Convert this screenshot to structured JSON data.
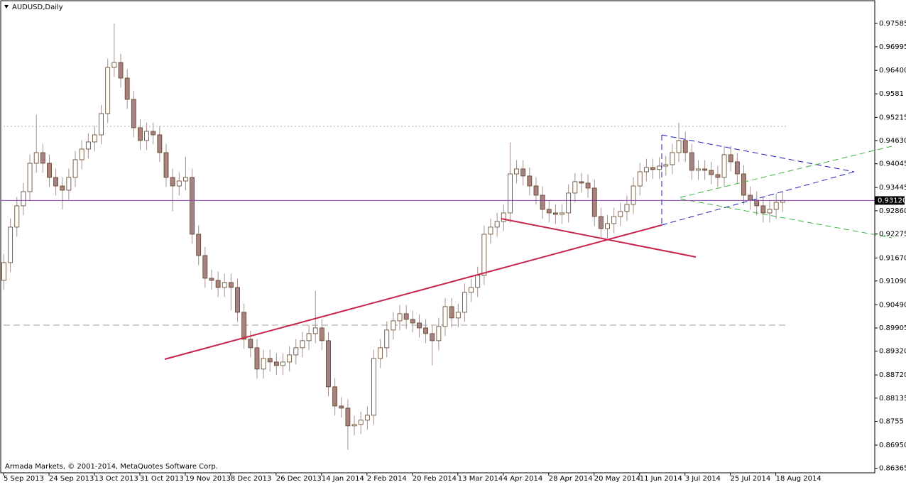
{
  "chart_data": {
    "type": "candlestick",
    "title": "AUDUSD,Daily",
    "footer": "Armada Markets, © 2001-2014, MetaQuotes Software Corp.",
    "categories": [
      "5 Sep 2013",
      null,
      null,
      null,
      null,
      null,
      null,
      "24 Sep 2013",
      null,
      null,
      null,
      null,
      null,
      null,
      "13 Oct 2013",
      null,
      null,
      null,
      null,
      null,
      null,
      "31 Oct 2013",
      null,
      null,
      null,
      null,
      null,
      null,
      "19 Nov 2013",
      null,
      null,
      null,
      null,
      null,
      null,
      "8 Dec 2013",
      null,
      null,
      null,
      null,
      null,
      null,
      "26 Dec 2013",
      null,
      null,
      null,
      null,
      null,
      null,
      "14 Jan 2014",
      null,
      null,
      null,
      null,
      null,
      null,
      "2 Feb 2014",
      null,
      null,
      null,
      null,
      null,
      null,
      "20 Feb 2014",
      null,
      null,
      null,
      null,
      null,
      null,
      "13 Mar 2014",
      null,
      null,
      null,
      null,
      null,
      null,
      "4 Apr 2014",
      null,
      null,
      null,
      null,
      null,
      null,
      "28 Apr 2014",
      null,
      null,
      null,
      null,
      null,
      null,
      "20 May 2014",
      null,
      null,
      null,
      null,
      null,
      null,
      "11 Jun 2014",
      null,
      null,
      null,
      null,
      null,
      null,
      "3 Jul 2014",
      null,
      null,
      null,
      null,
      null,
      null,
      "25 Jul 2014",
      null,
      null,
      null,
      null,
      null,
      null,
      "18 Aug 2014",
      null
    ],
    "open": [
      0.91105,
      0.91553,
      0.92448,
      0.92985,
      0.93343,
      0.94059,
      0.94327,
      0.94059,
      0.93701,
      0.93486,
      0.93379,
      0.93701,
      0.94148,
      0.94417,
      0.94596,
      0.94775,
      0.95312,
      0.96475,
      0.96601,
      0.96207,
      0.9567,
      0.94954,
      0.94632,
      0.94864,
      0.94775,
      0.94327,
      0.93701,
      0.93486,
      0.93611,
      0.93701,
      0.92269,
      0.91732,
      0.91159,
      0.91105,
      0.90926,
      0.91052,
      0.90926,
      0.903,
      0.8962,
      0.89405,
      0.88868,
      0.89136,
      0.89047,
      0.88957,
      0.89047,
      0.89226,
      0.89405,
      0.89584,
      0.89763,
      0.89906,
      0.89584,
      0.8842,
      0.87937,
      0.87883,
      0.87436,
      0.87472,
      0.87579,
      0.87704,
      0.89136,
      0.89405,
      0.89852,
      0.90085,
      0.90264,
      0.90121,
      0.90031,
      0.89906,
      0.89763,
      0.89584,
      0.89942,
      0.90443,
      0.90157,
      0.903,
      0.90801,
      0.90926,
      0.91231,
      0.92269,
      0.92448,
      0.92591,
      0.92806,
      0.9379,
      0.93916,
      0.93737,
      0.93486,
      0.93253,
      0.92895,
      0.92806,
      0.9277,
      0.92806,
      0.93307,
      0.93594,
      0.93558,
      0.93432,
      0.92716,
      0.92412,
      0.92537,
      0.92716,
      0.92842,
      0.93021,
      0.93486,
      0.93844,
      0.93952,
      0.93901,
      0.93987,
      0.94023,
      0.94327,
      0.94632,
      0.94327,
      0.9388,
      0.93916,
      0.9388,
      0.93773,
      0.93701,
      0.94274,
      0.94095,
      0.9379,
      0.93253,
      0.93128,
      0.92985,
      0.92806,
      0.92895,
      0.93074
    ],
    "high": [
      0.91773,
      0.92668,
      0.93205,
      0.93563,
      0.94279,
      0.9528,
      0.94547,
      0.94279,
      0.93921,
      0.93706,
      0.93921,
      0.94368,
      0.94637,
      0.94816,
      0.94995,
      0.95532,
      0.96695,
      0.9758,
      0.96821,
      0.96427,
      0.9589,
      0.95174,
      0.95084,
      0.95084,
      0.94995,
      0.94547,
      0.93921,
      0.93831,
      0.94221,
      0.93921,
      0.92489,
      0.91952,
      0.91379,
      0.91325,
      0.91272,
      0.91272,
      0.91146,
      0.9052,
      0.8984,
      0.89625,
      0.89356,
      0.89356,
      0.89267,
      0.89267,
      0.89446,
      0.89625,
      0.89804,
      0.89983,
      0.90837,
      0.90126,
      0.89804,
      0.8864,
      0.88157,
      0.88103,
      0.87692,
      0.87799,
      0.87924,
      0.89356,
      0.89625,
      0.90072,
      0.90305,
      0.90484,
      0.90484,
      0.90341,
      0.90251,
      0.90126,
      0.89983,
      0.90162,
      0.90663,
      0.90663,
      0.9052,
      0.91021,
      0.91146,
      0.91451,
      0.92489,
      0.92668,
      0.92811,
      0.93026,
      0.9458,
      0.94136,
      0.94136,
      0.93957,
      0.93706,
      0.93473,
      0.93115,
      0.93026,
      0.93026,
      0.93527,
      0.93814,
      0.93814,
      0.93778,
      0.93652,
      0.92936,
      0.92757,
      0.92936,
      0.93062,
      0.93241,
      0.93706,
      0.94064,
      0.94172,
      0.94172,
      0.94207,
      0.94243,
      0.94547,
      0.9508,
      0.94852,
      0.94547,
      0.94136,
      0.94136,
      0.941,
      0.93993,
      0.94494,
      0.94494,
      0.94315,
      0.9401,
      0.93473,
      0.93348,
      0.93205,
      0.93115,
      0.93294,
      0.9334
    ],
    "low": [
      0.90865,
      0.91313,
      0.92208,
      0.92745,
      0.93103,
      0.93819,
      0.93819,
      0.93461,
      0.93246,
      0.92896,
      0.93139,
      0.93461,
      0.93908,
      0.94177,
      0.94356,
      0.94535,
      0.95072,
      0.96235,
      0.95967,
      0.9543,
      0.94714,
      0.94392,
      0.94392,
      0.94535,
      0.94087,
      0.93461,
      0.92846,
      0.93246,
      0.93371,
      0.92029,
      0.91492,
      0.90919,
      0.90865,
      0.90686,
      0.90686,
      0.90346,
      0.9006,
      0.8938,
      0.89165,
      0.88628,
      0.88628,
      0.88807,
      0.88717,
      0.88717,
      0.88807,
      0.88986,
      0.89165,
      0.89344,
      0.89523,
      0.89344,
      0.8818,
      0.87697,
      0.87643,
      0.8683,
      0.87196,
      0.87232,
      0.87339,
      0.87464,
      0.88896,
      0.89165,
      0.89612,
      0.89845,
      0.89881,
      0.89791,
      0.89666,
      0.89523,
      0.8896,
      0.89344,
      0.89702,
      0.89917,
      0.89917,
      0.9006,
      0.90561,
      0.90686,
      0.90991,
      0.92029,
      0.92208,
      0.92351,
      0.92566,
      0.9355,
      0.93497,
      0.93246,
      0.93013,
      0.92655,
      0.92566,
      0.9253,
      0.9253,
      0.92566,
      0.93067,
      0.93318,
      0.93192,
      0.92476,
      0.92172,
      0.92172,
      0.92297,
      0.92476,
      0.92602,
      0.92781,
      0.93246,
      0.93604,
      0.93661,
      0.93661,
      0.93747,
      0.93783,
      0.94087,
      0.94087,
      0.9364,
      0.9364,
      0.9364,
      0.93533,
      0.93461,
      0.93461,
      0.93855,
      0.9355,
      0.93013,
      0.92888,
      0.92745,
      0.92566,
      0.92566,
      0.92655,
      0.92834
    ],
    "close": [
      0.91553,
      0.92448,
      0.92985,
      0.93343,
      0.94059,
      0.94327,
      0.94059,
      0.93701,
      0.93486,
      0.93379,
      0.93701,
      0.94148,
      0.94417,
      0.94596,
      0.94775,
      0.95312,
      0.96475,
      0.96601,
      0.96207,
      0.9567,
      0.94954,
      0.94632,
      0.94864,
      0.94775,
      0.94327,
      0.93701,
      0.93486,
      0.93611,
      0.93701,
      0.92269,
      0.91732,
      0.91159,
      0.91105,
      0.90926,
      0.91052,
      0.90926,
      0.903,
      0.8962,
      0.89405,
      0.88868,
      0.89136,
      0.89047,
      0.88957,
      0.89047,
      0.89226,
      0.89405,
      0.89584,
      0.89763,
      0.89906,
      0.89584,
      0.8842,
      0.87937,
      0.87883,
      0.87436,
      0.87472,
      0.87579,
      0.87704,
      0.89136,
      0.89405,
      0.89852,
      0.90085,
      0.90264,
      0.90121,
      0.90031,
      0.89906,
      0.89763,
      0.89584,
      0.89942,
      0.90443,
      0.90157,
      0.903,
      0.90801,
      0.90926,
      0.91231,
      0.92269,
      0.92448,
      0.92591,
      0.92806,
      0.9379,
      0.93916,
      0.93737,
      0.93486,
      0.93253,
      0.92895,
      0.92806,
      0.9277,
      0.92806,
      0.93307,
      0.93594,
      0.93558,
      0.93432,
      0.92716,
      0.92412,
      0.92537,
      0.92716,
      0.92842,
      0.93021,
      0.93486,
      0.93844,
      0.93952,
      0.93901,
      0.93987,
      0.94023,
      0.94327,
      0.94632,
      0.94327,
      0.9388,
      0.93916,
      0.9388,
      0.93773,
      0.93701,
      0.94274,
      0.94095,
      0.9379,
      0.93253,
      0.93128,
      0.92985,
      0.92806,
      0.92895,
      0.93074,
      0.9312
    ],
    "bull_color": "#ffffff",
    "bear_color": "#a88282",
    "outline_color": "#5c3d1e",
    "wick_color": "#a49090",
    "ylim": [
      0.86252,
      0.9814
    ],
    "yticks": [
      0.97585,
      0.96995,
      {
        "value": 0.964,
        "label": "0.96400"
      },
      0.9581,
      0.95215,
      {
        "value": 0.9463,
        "label": "0.94630"
      },
      0.94045,
      0.93445,
      {
        "value": 0.9286,
        "label": "0.92860"
      },
      0.92275,
      {
        "value": 0.9167,
        "label": "0.91670"
      },
      {
        "value": 0.9109,
        "label": "0.91090"
      },
      {
        "value": 0.9049,
        "label": "0.90490"
      },
      0.89905,
      {
        "value": 0.8932,
        "label": "0.89320"
      },
      {
        "value": 0.8872,
        "label": "0.88720"
      },
      0.88135,
      0.8755,
      {
        "value": 0.8695,
        "label": "0.86950"
      },
      0.86365
    ],
    "price_line": {
      "value": 0.9312,
      "label": "0.93120",
      "color": "#8b3fb8"
    }
  }
}
